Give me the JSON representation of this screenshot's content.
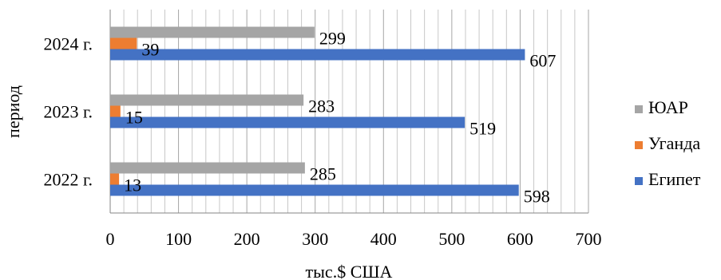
{
  "chart_data": {
    "type": "bar",
    "orientation": "horizontal",
    "categories": [
      "2022 г.",
      "2023 г.",
      "2024 г."
    ],
    "series": [
      {
        "name": "Египет",
        "color": "#4472C4",
        "values": [
          598,
          519,
          607
        ]
      },
      {
        "name": "Уганда",
        "color": "#ED7D31",
        "values": [
          13,
          15,
          39
        ]
      },
      {
        "name": "ЮАР",
        "color": "#A5A5A5",
        "values": [
          285,
          283,
          299
        ]
      }
    ],
    "xlim": [
      0,
      700
    ],
    "x_ticks": [
      0,
      100,
      200,
      300,
      400,
      500,
      600,
      700
    ],
    "xlabel": "тыс.$ США",
    "ylabel": "период",
    "legend_position": "right",
    "gridlines": "vertical major and minor",
    "data_labels": true
  }
}
